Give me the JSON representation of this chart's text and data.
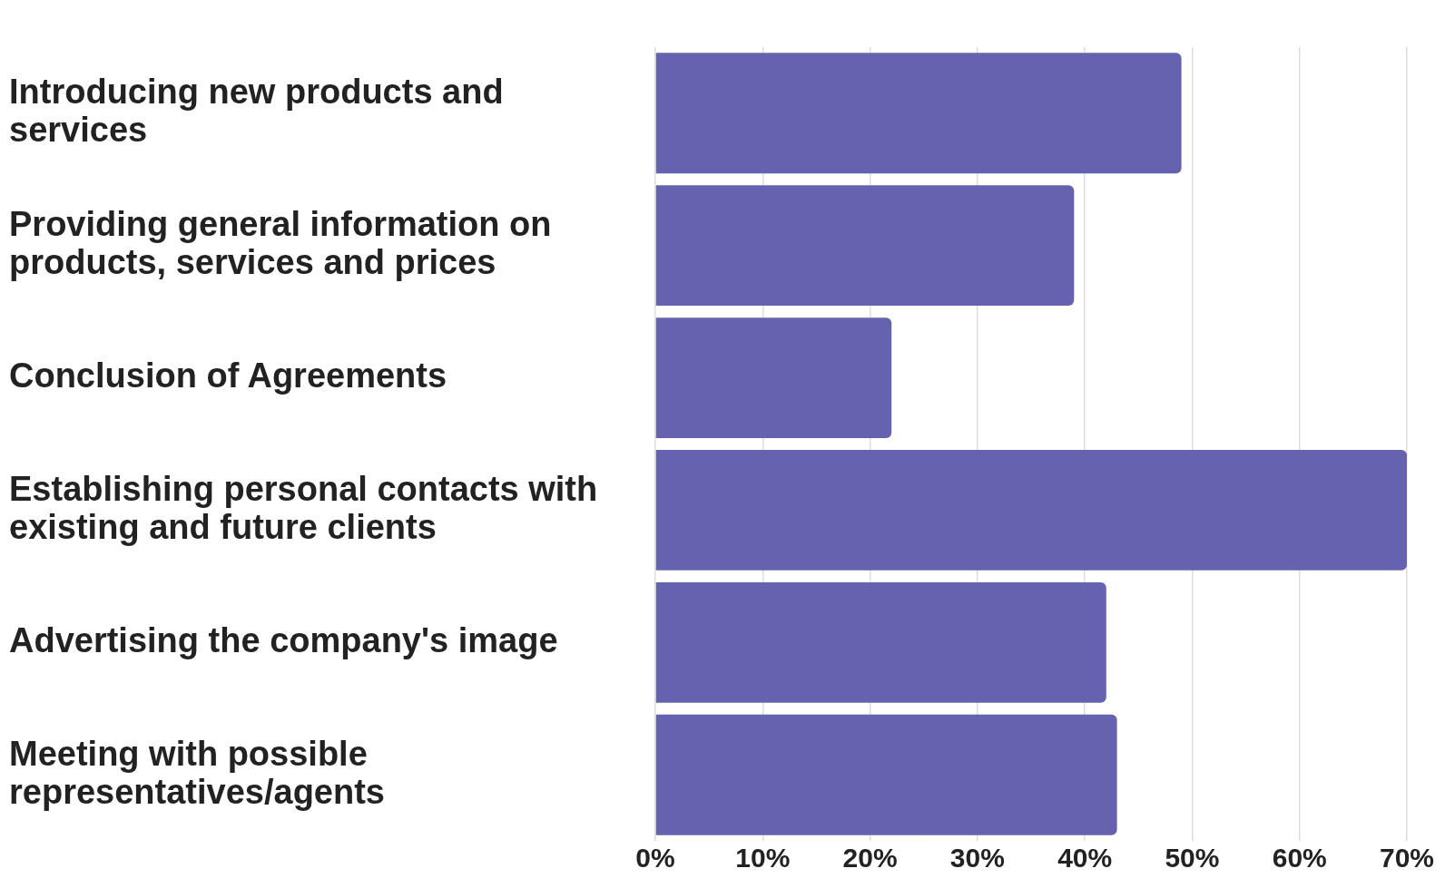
{
  "chart_data": {
    "type": "bar",
    "orientation": "horizontal",
    "categories": [
      "Introducing new products and services",
      "Providing general information on products, services and prices",
      "Conclusion of Agreements",
      "Establishing personal contacts with existing and future clients",
      "Advertising the company's image",
      "Meeting with possible representatives/agents"
    ],
    "values": [
      49,
      39,
      22,
      70,
      42,
      43
    ],
    "color": "#6563af",
    "xlim": [
      0,
      70
    ],
    "xticks": [
      {
        "value": 0,
        "label": "0%"
      },
      {
        "value": 10,
        "label": "10%"
      },
      {
        "value": 20,
        "label": "20%"
      },
      {
        "value": 30,
        "label": "30%"
      },
      {
        "value": 40,
        "label": "40%"
      },
      {
        "value": 50,
        "label": "50%"
      },
      {
        "value": 60,
        "label": "60%"
      },
      {
        "value": 70,
        "label": "70%"
      }
    ],
    "grid": "x"
  }
}
